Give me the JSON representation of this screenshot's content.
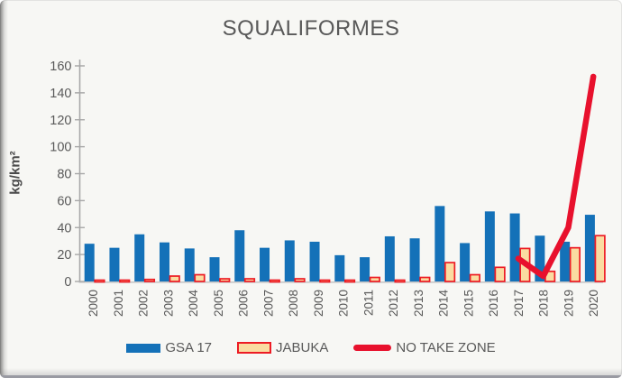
{
  "chart_data": {
    "type": "bar",
    "title": "SQUALIFORMES",
    "ylabel": "kg/km²",
    "xlabel": "",
    "categories": [
      "2000",
      "2001",
      "2002",
      "2003",
      "2004",
      "2005",
      "2006",
      "2007",
      "2008",
      "2009",
      "2010",
      "2011",
      "2012",
      "2013",
      "2014",
      "2015",
      "2016",
      "2017",
      "2018",
      "2019",
      "2020"
    ],
    "ylim": [
      0,
      160
    ],
    "yticks": [
      0,
      20,
      40,
      60,
      80,
      100,
      120,
      140,
      160
    ],
    "grid": false,
    "legend_position": "bottom",
    "series": [
      {
        "name": "GSA 17",
        "type": "bar",
        "color": "#1471B8",
        "values": [
          28,
          25,
          35,
          29,
          24.5,
          18,
          38,
          25,
          30.5,
          29.5,
          19.5,
          18,
          33.5,
          32,
          56,
          28.5,
          52,
          50.5,
          34,
          29.5,
          49.5
        ]
      },
      {
        "name": "JABUKA",
        "type": "bar",
        "color": "#FADCA1",
        "border_color": "#ED1B24",
        "values": [
          1,
          1,
          1.5,
          4,
          5,
          2,
          2,
          1,
          2,
          1,
          1,
          3,
          1,
          3,
          14,
          5,
          10.5,
          24.5,
          7.5,
          25,
          34
        ]
      },
      {
        "name": "NO TAKE ZONE",
        "type": "line",
        "color": "#E8112D",
        "values": [
          null,
          null,
          null,
          null,
          null,
          null,
          null,
          null,
          null,
          null,
          null,
          null,
          null,
          null,
          null,
          null,
          null,
          17,
          4,
          40,
          152
        ]
      }
    ]
  },
  "axis_style": {
    "axis_color": "#a8a8a8",
    "baseline_color": "#c6c6c6",
    "tick_label_color": "#595959"
  }
}
